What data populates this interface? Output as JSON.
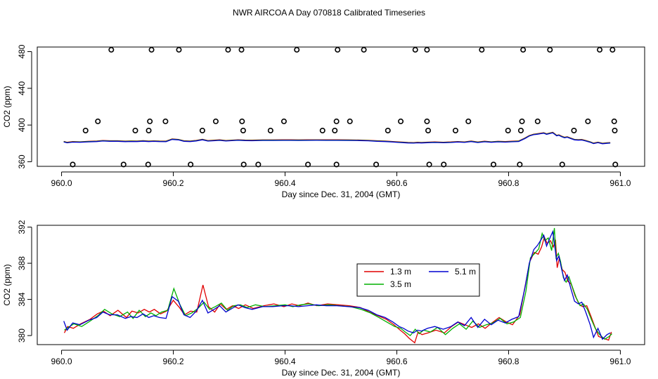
{
  "title": "NWR AIRCOA A  Day 070818  Calibrated Timeseries",
  "chart_data": [
    {
      "type": "scatter+line",
      "panel": "top",
      "xlabel": "Day since Dec. 31, 2004 (GMT)",
      "ylabel": "CO2 (ppm)",
      "xlim": [
        960.0,
        961.0
      ],
      "ylim": [
        355,
        485
      ],
      "xticks": [
        960.0,
        960.2,
        960.4,
        960.6,
        960.8,
        961.0
      ],
      "xtick_labels": [
        "960.0",
        "960.2",
        "960.4",
        "960.6",
        "960.8",
        "961.0"
      ],
      "yticks": [
        360,
        400,
        440,
        480
      ],
      "ytick_labels": [
        "360",
        "400",
        "440",
        "480"
      ],
      "grid": false,
      "colors": {
        "red": "#e00000",
        "green": "#00b000",
        "blue": "#0000d0"
      },
      "points": [
        {
          "x": 960.089,
          "y": 482
        },
        {
          "x": 960.161,
          "y": 482
        },
        {
          "x": 960.21,
          "y": 482
        },
        {
          "x": 960.298,
          "y": 482
        },
        {
          "x": 960.322,
          "y": 482
        },
        {
          "x": 960.421,
          "y": 482
        },
        {
          "x": 960.494,
          "y": 482
        },
        {
          "x": 960.541,
          "y": 482
        },
        {
          "x": 960.633,
          "y": 482
        },
        {
          "x": 960.654,
          "y": 482
        },
        {
          "x": 960.752,
          "y": 482
        },
        {
          "x": 960.826,
          "y": 482
        },
        {
          "x": 960.874,
          "y": 482
        },
        {
          "x": 960.963,
          "y": 482
        },
        {
          "x": 960.986,
          "y": 482
        },
        {
          "x": 960.065,
          "y": 404
        },
        {
          "x": 960.158,
          "y": 404
        },
        {
          "x": 960.186,
          "y": 404
        },
        {
          "x": 960.276,
          "y": 404
        },
        {
          "x": 960.323,
          "y": 404
        },
        {
          "x": 960.398,
          "y": 404
        },
        {
          "x": 960.492,
          "y": 404
        },
        {
          "x": 960.516,
          "y": 404
        },
        {
          "x": 960.607,
          "y": 404
        },
        {
          "x": 960.654,
          "y": 404
        },
        {
          "x": 960.728,
          "y": 404
        },
        {
          "x": 960.824,
          "y": 404
        },
        {
          "x": 960.852,
          "y": 404
        },
        {
          "x": 960.942,
          "y": 404
        },
        {
          "x": 960.989,
          "y": 404
        },
        {
          "x": 960.043,
          "y": 394
        },
        {
          "x": 960.132,
          "y": 394
        },
        {
          "x": 960.156,
          "y": 394
        },
        {
          "x": 960.252,
          "y": 394
        },
        {
          "x": 960.325,
          "y": 394
        },
        {
          "x": 960.374,
          "y": 394
        },
        {
          "x": 960.467,
          "y": 394
        },
        {
          "x": 960.489,
          "y": 394
        },
        {
          "x": 960.584,
          "y": 394
        },
        {
          "x": 960.656,
          "y": 394
        },
        {
          "x": 960.705,
          "y": 394
        },
        {
          "x": 960.799,
          "y": 394
        },
        {
          "x": 960.822,
          "y": 394
        },
        {
          "x": 960.917,
          "y": 394
        },
        {
          "x": 960.99,
          "y": 394
        },
        {
          "x": 960.02,
          "y": 357
        },
        {
          "x": 960.111,
          "y": 357
        },
        {
          "x": 960.155,
          "y": 357
        },
        {
          "x": 960.231,
          "y": 357
        },
        {
          "x": 960.326,
          "y": 357
        },
        {
          "x": 960.352,
          "y": 357
        },
        {
          "x": 960.441,
          "y": 357
        },
        {
          "x": 960.492,
          "y": 357
        },
        {
          "x": 960.563,
          "y": 357
        },
        {
          "x": 960.658,
          "y": 357
        },
        {
          "x": 960.684,
          "y": 357
        },
        {
          "x": 960.773,
          "y": 357
        },
        {
          "x": 960.82,
          "y": 357
        },
        {
          "x": 960.896,
          "y": 357
        },
        {
          "x": 960.991,
          "y": 357
        }
      ]
    },
    {
      "type": "line",
      "panel": "bottom",
      "xlabel": "Day since Dec. 31, 2004 (GMT)",
      "ylabel": "CO2 (ppm)",
      "xlim": [
        960.0,
        961.0
      ],
      "ylim": [
        379.0,
        392.2
      ],
      "xticks": [
        960.0,
        960.2,
        960.4,
        960.6,
        960.8,
        961.0
      ],
      "xtick_labels": [
        "960.0",
        "960.2",
        "960.4",
        "960.6",
        "960.8",
        "961.0"
      ],
      "yticks": [
        380,
        384,
        388,
        392
      ],
      "ytick_labels": [
        "380",
        "384",
        "388",
        "392"
      ],
      "grid": false,
      "legend": {
        "position": "center-right",
        "entries": [
          "1.3 m",
          "3.5 m",
          "5.1 m"
        ]
      },
      "series": [
        {
          "name": "1.3 m",
          "color": "#e00000",
          "x": [
            960.005,
            960.011,
            960.021,
            960.034,
            960.051,
            960.064,
            960.075,
            960.087,
            960.101,
            960.116,
            960.126,
            960.137,
            960.148,
            960.157,
            960.166,
            960.177,
            960.188,
            960.2,
            960.211,
            960.22,
            960.231,
            960.242,
            960.253,
            960.263,
            960.274,
            960.284,
            960.295,
            960.306,
            960.317,
            960.329,
            960.343,
            960.362,
            960.38,
            960.398,
            960.412,
            960.426,
            960.441,
            960.457,
            960.476,
            960.495,
            960.515,
            960.535,
            960.551,
            960.566,
            960.581,
            960.595,
            960.606,
            960.614,
            960.622,
            960.632,
            960.638,
            960.645,
            960.656,
            960.67,
            960.685,
            960.698,
            960.71,
            960.722,
            960.734,
            960.746,
            960.758,
            960.77,
            960.783,
            960.796,
            960.807,
            960.82,
            960.83,
            960.838,
            960.846,
            960.853,
            960.859,
            960.864,
            960.869,
            960.875,
            960.88,
            960.884,
            960.887,
            960.891,
            960.896,
            960.901,
            960.906,
            960.912,
            960.919,
            960.926,
            960.932,
            960.94,
            960.947,
            960.953,
            960.961,
            960.97,
            960.979,
            960.984
          ],
          "values": [
            380.3,
            381.0,
            380.8,
            381.3,
            381.8,
            382.4,
            382.7,
            382.2,
            382.8,
            382.0,
            382.7,
            382.5,
            382.9,
            382.6,
            382.9,
            382.4,
            382.7,
            383.9,
            383.1,
            382.3,
            382.7,
            382.6,
            385.6,
            383.2,
            382.6,
            383.5,
            382.9,
            383.3,
            383.0,
            383.4,
            383.0,
            383.3,
            383.5,
            383.2,
            383.5,
            383.3,
            383.6,
            383.3,
            383.5,
            383.4,
            383.3,
            383.1,
            382.6,
            382.2,
            381.8,
            381.2,
            380.6,
            380.2,
            379.7,
            379.2,
            380.4,
            380.1,
            380.3,
            380.6,
            380.3,
            381.0,
            381.5,
            381.2,
            380.9,
            381.3,
            380.8,
            381.4,
            382.0,
            381.5,
            381.2,
            382.3,
            385.6,
            388.2,
            389.2,
            389.0,
            389.8,
            390.9,
            390.2,
            390.5,
            389.8,
            390.6,
            387.5,
            388.6,
            387.3,
            387.0,
            386.0,
            385.7,
            384.4,
            383.5,
            383.2,
            383.3,
            382.2,
            381.2,
            379.9,
            379.7,
            379.5,
            380.4
          ]
        },
        {
          "name": "3.5 m",
          "color": "#00b000",
          "x": [
            960.005,
            960.012,
            960.022,
            960.036,
            960.051,
            960.065,
            960.077,
            960.09,
            960.104,
            960.118,
            960.128,
            960.139,
            960.15,
            960.16,
            960.169,
            960.179,
            960.19,
            960.201,
            960.212,
            960.222,
            960.233,
            960.244,
            960.255,
            960.265,
            960.275,
            960.286,
            960.297,
            960.308,
            960.32,
            960.332,
            960.347,
            960.364,
            960.382,
            960.4,
            960.414,
            960.428,
            960.443,
            960.46,
            960.478,
            960.497,
            960.517,
            960.536,
            960.553,
            960.568,
            960.582,
            960.596,
            960.607,
            960.615,
            960.624,
            960.633,
            960.64,
            960.648,
            960.66,
            960.673,
            960.687,
            960.7,
            960.712,
            960.724,
            960.736,
            960.748,
            960.76,
            960.772,
            960.785,
            960.797,
            960.809,
            960.821,
            960.831,
            960.839,
            960.847,
            960.854,
            960.86,
            960.865,
            960.871,
            960.877,
            960.882,
            960.885,
            960.889,
            960.893,
            960.898,
            960.903,
            960.908,
            960.914,
            960.921,
            960.928,
            960.934,
            960.941,
            960.948,
            960.955,
            960.963,
            960.972,
            960.98,
            960.985
          ],
          "values": [
            380.6,
            380.9,
            381.3,
            381.0,
            381.6,
            382.2,
            382.9,
            382.4,
            382.1,
            382.6,
            381.9,
            382.8,
            382.1,
            382.5,
            382.2,
            382.6,
            382.8,
            385.2,
            383.4,
            382.2,
            382.5,
            383.0,
            383.7,
            382.9,
            383.2,
            383.6,
            382.8,
            383.3,
            383.4,
            383.1,
            383.4,
            383.2,
            383.3,
            383.4,
            383.2,
            383.4,
            383.5,
            383.3,
            383.4,
            383.3,
            383.2,
            382.9,
            382.5,
            382.0,
            381.5,
            381.0,
            380.8,
            380.4,
            380.0,
            380.7,
            380.2,
            380.6,
            380.4,
            380.9,
            380.1,
            380.8,
            381.3,
            380.7,
            381.6,
            380.9,
            381.2,
            381.4,
            381.9,
            381.3,
            381.5,
            382.0,
            384.9,
            388.6,
            389.1,
            389.6,
            391.3,
            390.5,
            390.8,
            389.4,
            391.9,
            388.6,
            389.1,
            388.2,
            386.4,
            385.9,
            386.5,
            385.4,
            384.2,
            383.3,
            383.5,
            382.9,
            381.8,
            380.8,
            380.1,
            379.6,
            379.9,
            380.2
          ]
        },
        {
          "name": "5.1 m",
          "color": "#0000d0",
          "x": [
            960.004,
            960.01,
            960.02,
            960.033,
            960.049,
            960.063,
            960.074,
            960.086,
            960.1,
            960.114,
            960.124,
            960.135,
            960.146,
            960.156,
            960.165,
            960.175,
            960.187,
            960.198,
            960.209,
            960.219,
            960.23,
            960.241,
            960.252,
            960.262,
            960.273,
            960.283,
            960.294,
            960.305,
            960.316,
            960.328,
            960.341,
            960.36,
            960.378,
            960.396,
            960.41,
            960.424,
            960.44,
            960.456,
            960.474,
            960.493,
            960.513,
            960.533,
            960.549,
            960.564,
            960.579,
            960.593,
            960.604,
            960.612,
            960.62,
            960.63,
            960.637,
            960.644,
            960.655,
            960.668,
            960.683,
            960.697,
            960.709,
            960.721,
            960.733,
            960.745,
            960.757,
            960.769,
            960.781,
            960.794,
            960.806,
            960.818,
            960.829,
            960.837,
            960.845,
            960.852,
            960.858,
            960.863,
            960.868,
            960.874,
            960.879,
            960.883,
            960.886,
            960.89,
            960.895,
            960.9,
            960.905,
            960.911,
            960.918,
            960.925,
            960.931,
            960.938,
            960.946,
            960.952,
            960.96,
            960.968,
            960.976,
            960.982
          ],
          "values": [
            381.6,
            380.6,
            381.4,
            381.2,
            381.7,
            382.0,
            382.6,
            382.3,
            382.3,
            381.9,
            382.1,
            382.0,
            382.4,
            382.0,
            382.2,
            382.0,
            381.9,
            384.3,
            383.8,
            382.3,
            382.0,
            382.7,
            383.9,
            382.5,
            382.9,
            383.3,
            382.6,
            383.0,
            383.4,
            383.1,
            382.9,
            383.2,
            383.2,
            383.3,
            383.3,
            383.2,
            383.3,
            383.4,
            383.3,
            383.3,
            383.2,
            383.1,
            382.8,
            382.3,
            382.0,
            381.5,
            381.0,
            380.8,
            380.5,
            380.3,
            380.6,
            380.5,
            380.8,
            381.0,
            380.7,
            381.0,
            381.5,
            381.1,
            382.0,
            380.9,
            381.8,
            381.2,
            381.7,
            381.4,
            381.8,
            382.1,
            385.2,
            388.0,
            389.5,
            390.0,
            390.6,
            391.1,
            389.9,
            390.8,
            391.5,
            389.7,
            388.3,
            388.8,
            387.3,
            386.1,
            386.7,
            385.3,
            383.8,
            383.5,
            383.7,
            382.6,
            381.2,
            379.8,
            380.8,
            379.6,
            380.1,
            380.3
          ]
        }
      ]
    }
  ]
}
